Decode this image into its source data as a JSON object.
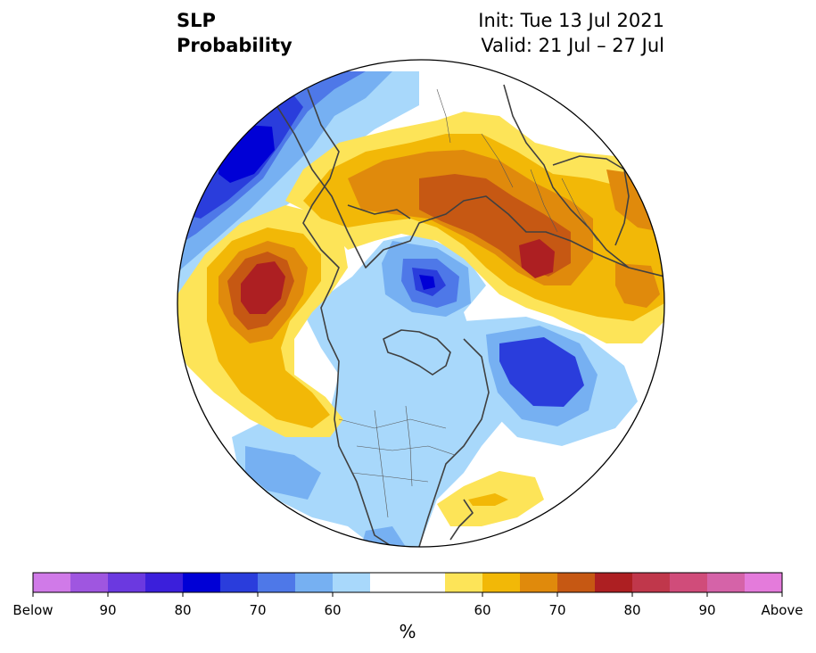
{
  "title": {
    "left_line1": "SLP",
    "left_line2": "Probability",
    "right_line1": "Init: Tue 13 Jul 2021",
    "right_line2": "Valid: 21 Jul – 27 Jul"
  },
  "colors": {
    "below": [
      "#d07ae8",
      "#9f56e0",
      "#6b39e0",
      "#3b1fdb",
      "#0000d6",
      "#2a3ddc",
      "#4e78e8",
      "#76b0f2",
      "#a8d8fb"
    ],
    "neutral": "#ffffff",
    "above": [
      "#fde458",
      "#f2b807",
      "#e08a0c",
      "#c65813",
      "#ad1f22",
      "#c0374b",
      "#d04c7a",
      "#d563a8",
      "#e47bdb"
    ],
    "land_outline": "#404040"
  },
  "colorbar": {
    "labels": [
      {
        "text": "Below",
        "slot": 0
      },
      {
        "text": "90",
        "slot": 2
      },
      {
        "text": "80",
        "slot": 4
      },
      {
        "text": "70",
        "slot": 6
      },
      {
        "text": "60",
        "slot": 8
      },
      {
        "text": "60",
        "slot": 12
      },
      {
        "text": "70",
        "slot": 14
      },
      {
        "text": "80",
        "slot": 16
      },
      {
        "text": "90",
        "slot": 18
      },
      {
        "text": "Above",
        "slot": 20
      }
    ],
    "unit": "%"
  },
  "map": {
    "projection": "north-polar-stereographic",
    "regions": [
      {
        "name": "pacific-above-anomaly",
        "category": "above",
        "peak_level": "70-80%"
      },
      {
        "name": "scandinavia-west-russia-above-anomaly",
        "category": "above",
        "peak_level": "70-80%"
      },
      {
        "name": "siberia-above-anomaly",
        "category": "above",
        "peak_level": "60-70%"
      },
      {
        "name": "western-atlantic-above-anomaly",
        "category": "above",
        "peak_level": "60%"
      },
      {
        "name": "north-pole-below-anomaly",
        "category": "below",
        "peak_level": "80%"
      },
      {
        "name": "north-atlantic-below-anomaly",
        "category": "below",
        "peak_level": "70-80%"
      },
      {
        "name": "east-asia-below-anomaly",
        "category": "below",
        "peak_level": "80%"
      },
      {
        "name": "north-america-below-anomaly",
        "category": "below",
        "peak_level": "60%"
      }
    ]
  }
}
